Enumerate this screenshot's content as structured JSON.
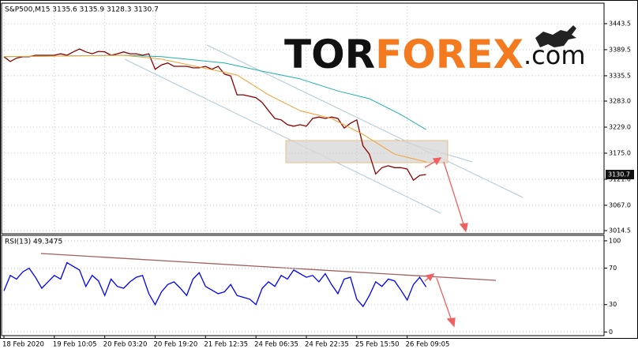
{
  "chart_data": [
    {
      "type": "line",
      "title": "S&P500,M15  3135.6 3135.9 3128.3 3130.7",
      "last_label": "3130.7",
      "x": [
        0,
        1,
        2,
        3,
        4,
        5,
        6,
        7,
        8,
        9,
        10,
        11,
        12,
        13,
        14,
        15,
        16,
        17,
        18,
        19,
        20,
        21,
        22,
        23,
        24,
        25,
        26,
        27,
        28,
        29,
        30,
        31,
        32,
        33,
        34,
        35,
        36,
        37,
        38,
        39,
        40,
        41,
        42,
        43,
        44,
        45,
        46,
        47,
        48,
        49,
        50,
        51,
        52,
        53,
        54,
        55,
        56,
        57,
        58,
        59,
        60,
        61,
        62,
        63,
        64,
        65,
        66,
        67
      ],
      "series": [
        {
          "color": "#8b0000",
          "values": [
            3375,
            3365,
            3372,
            3375,
            3375,
            3378,
            3378,
            3378,
            3378,
            3381,
            3378,
            3385,
            3391,
            3385,
            3381,
            3386,
            3385,
            3378,
            3381,
            3385,
            3381,
            3381,
            3378,
            3381,
            3349,
            3358,
            3362,
            3355,
            3355,
            3355,
            3352,
            3352,
            3355,
            3349,
            3355,
            3339,
            3335,
            3296,
            3296,
            3293,
            3290,
            3280,
            3263,
            3247,
            3244,
            3234,
            3231,
            3234,
            3231,
            3247,
            3250,
            3247,
            3250,
            3247,
            3227,
            3237,
            3244,
            3190,
            3173,
            3132,
            3145,
            3149,
            3145,
            3145,
            3142,
            3119,
            3129,
            3130.7
          ]
        },
        {
          "color": "#20b2aa",
          "x": [
            0,
            19,
            25,
            35,
            41,
            47,
            53,
            58,
            63,
            67
          ],
          "values": [
            3375,
            3378,
            3375,
            3362,
            3345,
            3329,
            3304,
            3288,
            3255,
            3224
          ]
        },
        {
          "color": "#f0a030",
          "x": [
            0,
            19,
            25,
            37,
            42,
            47,
            52,
            57,
            62,
            67
          ],
          "values": [
            3375,
            3378,
            3370,
            3337,
            3296,
            3263,
            3247,
            3214,
            3173,
            3157
          ]
        }
      ],
      "xlim": [
        -0.375,
        95.25
      ],
      "xticks": [
        {
          "value": 0,
          "label": "18 Feb 2020"
        },
        {
          "value": 8,
          "label": "19 Feb 10:05"
        },
        {
          "value": 16,
          "label": "20 Feb 03:20"
        },
        {
          "value": 24,
          "label": "20 Feb 19:20"
        },
        {
          "value": 32,
          "label": "21 Feb 12:35"
        },
        {
          "value": 40,
          "label": "24 Feb 06:35"
        },
        {
          "value": 48,
          "label": "24 Feb 22:35"
        },
        {
          "value": 56,
          "label": "25 Feb 15:50"
        },
        {
          "value": 64,
          "label": "26 Feb 09:05"
        }
      ],
      "ylim": [
        3008,
        3486
      ],
      "yticks": [
        3443.5,
        3389.5,
        3335.5,
        {
          "value": 3283,
          "label": "3283.0"
        },
        {
          "value": 3229,
          "label": "3229.0"
        },
        {
          "value": 3175,
          "label": "3175.0"
        },
        {
          "value": 3121,
          "label": "3121.0"
        },
        {
          "value": 3067,
          "label": "3067.0"
        },
        3014.5
      ],
      "grid": true
    },
    {
      "type": "line",
      "title": "RSI(13) 49.3475",
      "x": [
        0,
        1,
        2,
        3,
        4,
        5,
        6,
        7,
        8,
        9,
        10,
        11,
        12,
        13,
        14,
        15,
        16,
        17,
        18,
        19,
        20,
        21,
        22,
        23,
        24,
        25,
        26,
        27,
        28,
        29,
        30,
        31,
        32,
        33,
        34,
        35,
        36,
        37,
        38,
        39,
        40,
        41,
        42,
        43,
        44,
        45,
        46,
        47,
        48,
        49,
        50,
        51,
        52,
        53,
        54,
        55,
        56,
        57,
        58,
        59,
        60,
        61,
        62,
        63,
        64,
        65,
        66,
        67
      ],
      "series": [
        {
          "color": "#0000ff",
          "values": [
            45,
            62,
            58,
            66,
            70,
            60,
            48,
            55,
            62,
            58,
            76,
            72,
            68,
            50,
            62,
            56,
            40,
            58,
            50,
            48,
            55,
            60,
            62,
            42,
            30,
            44,
            52,
            55,
            48,
            40,
            58,
            65,
            50,
            46,
            42,
            44,
            52,
            40,
            38,
            36,
            30,
            48,
            55,
            50,
            62,
            58,
            68,
            64,
            60,
            62,
            55,
            64,
            52,
            42,
            58,
            60,
            36,
            28,
            40,
            55,
            50,
            58,
            56,
            46,
            35,
            52,
            60,
            49.3475
          ]
        }
      ],
      "xlim": [
        -0.375,
        95.25
      ],
      "ylim": [
        -4,
        106
      ],
      "yticks": [
        100,
        70,
        30,
        0
      ],
      "grid": true
    }
  ],
  "watermark": {
    "parts": [
      "TOR",
      "FOREX",
      ".com"
    ]
  }
}
